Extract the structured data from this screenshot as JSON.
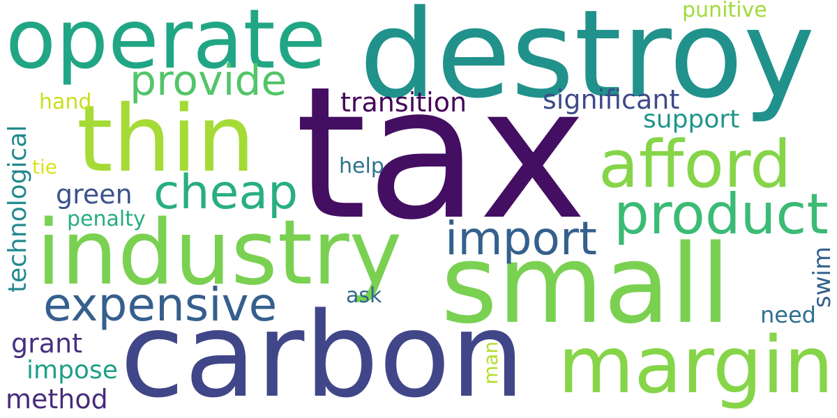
{
  "words": [
    {
      "id": "tax",
      "text": "tax",
      "color": "#440f62"
    },
    {
      "id": "destroy",
      "text": "destroy",
      "color": "#21918c"
    },
    {
      "id": "carbon",
      "text": "carbon",
      "color": "#404688"
    },
    {
      "id": "small",
      "text": "small",
      "color": "#7ad151"
    },
    {
      "id": "industry",
      "text": "industry",
      "color": "#7ad151"
    },
    {
      "id": "operate",
      "text": "operate",
      "color": "#21a685"
    },
    {
      "id": "thin",
      "text": "thin",
      "color": "#a5db36"
    },
    {
      "id": "margin",
      "text": "margin",
      "color": "#86d549"
    },
    {
      "id": "afford",
      "text": "afford",
      "color": "#86d549"
    },
    {
      "id": "product",
      "text": "product",
      "color": "#3bbb75"
    },
    {
      "id": "expensive",
      "text": "expensive",
      "color": "#355f8d"
    },
    {
      "id": "import",
      "text": "import",
      "color": "#35608d"
    },
    {
      "id": "cheap",
      "text": "cheap",
      "color": "#29af7f"
    },
    {
      "id": "provide",
      "text": "provide",
      "color": "#52c569"
    },
    {
      "id": "transition",
      "text": "transition",
      "color": "#450559"
    },
    {
      "id": "significant",
      "text": "significant",
      "color": "#3e4989"
    },
    {
      "id": "support",
      "text": "support",
      "color": "#1f968b"
    },
    {
      "id": "technological",
      "text": "technological",
      "color": "#23898e"
    },
    {
      "id": "green",
      "text": "green",
      "color": "#3b528b"
    },
    {
      "id": "grant",
      "text": "grant",
      "color": "#46307e"
    },
    {
      "id": "method",
      "text": "method",
      "color": "#472c7a"
    },
    {
      "id": "impose",
      "text": "impose",
      "color": "#1f9e89"
    },
    {
      "id": "punitive",
      "text": "punitive",
      "color": "#a0da39"
    },
    {
      "id": "hand",
      "text": "hand",
      "color": "#c8e020"
    },
    {
      "id": "tie",
      "text": "tie",
      "color": "#d8e219"
    },
    {
      "id": "penalty",
      "text": "penalty",
      "color": "#27ad81"
    },
    {
      "id": "help",
      "text": "help",
      "color": "#2c728e"
    },
    {
      "id": "ask",
      "text": "ask",
      "color": "#31688e"
    },
    {
      "id": "need",
      "text": "need",
      "color": "#2d708e"
    },
    {
      "id": "swim",
      "text": "swim",
      "color": "#34618d"
    },
    {
      "id": "man",
      "text": "man",
      "color": "#b5de2b"
    }
  ]
}
